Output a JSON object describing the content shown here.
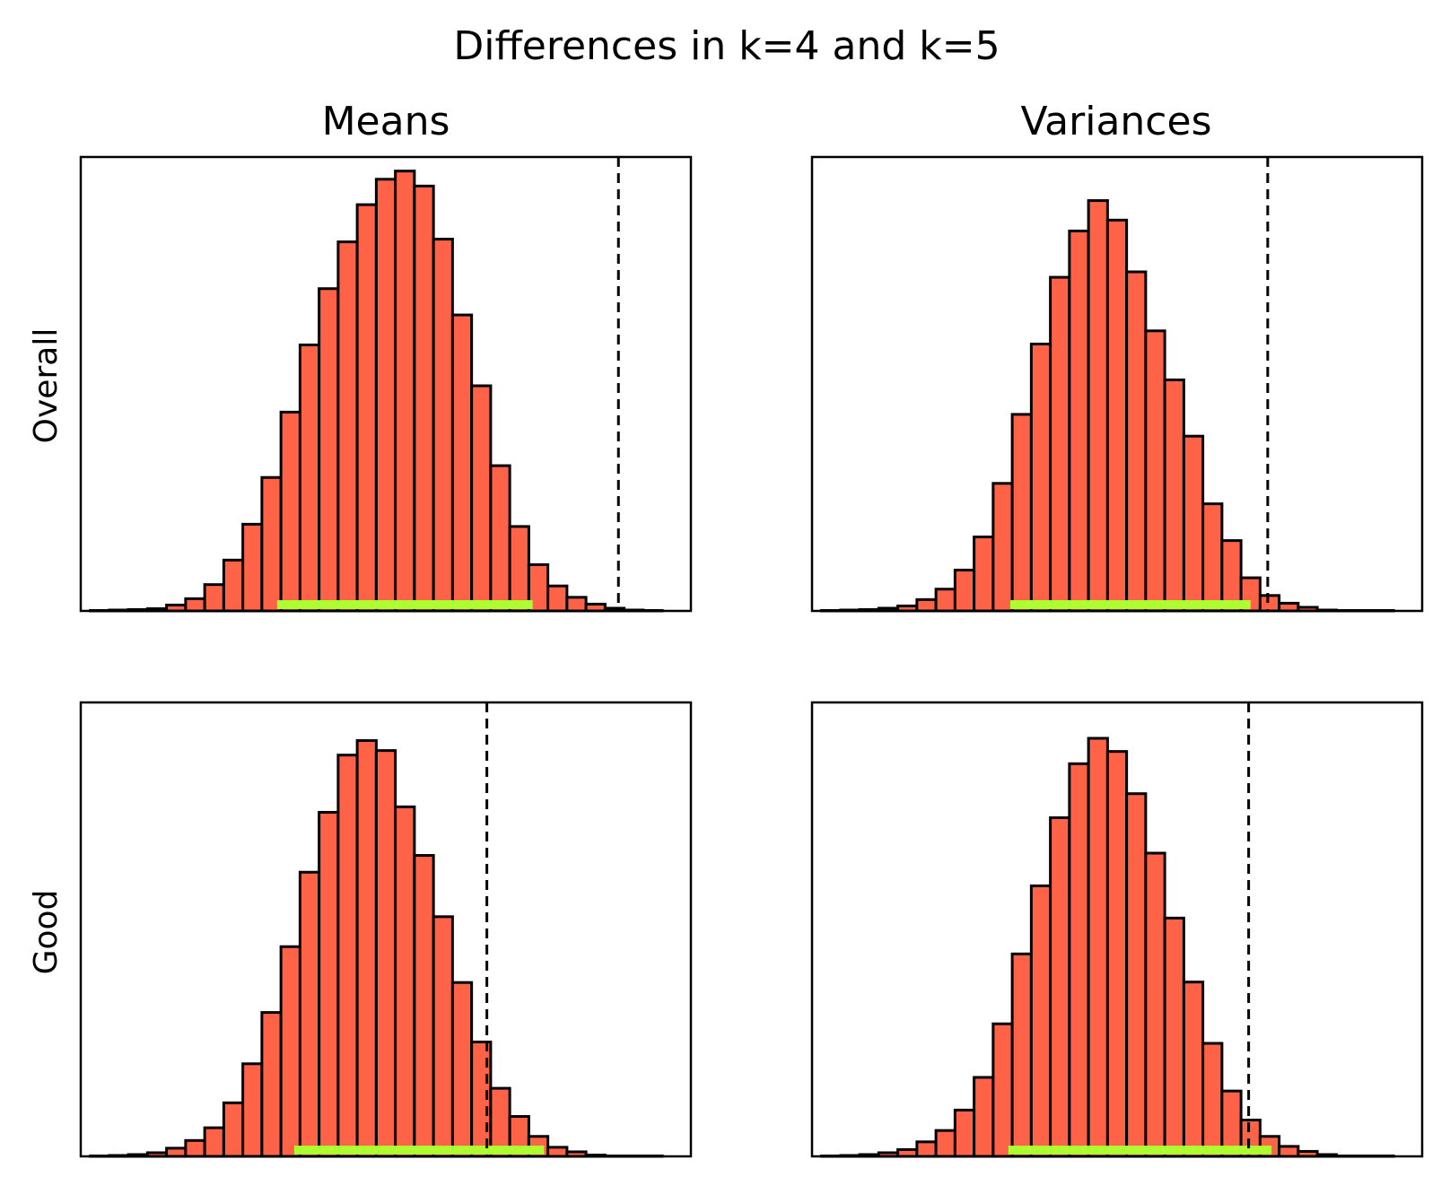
{
  "figure": {
    "title": "Differences in k=4 and k=5",
    "columns": [
      "Means",
      "Variances"
    ],
    "rows": [
      "Overall",
      "Good"
    ]
  },
  "colors": {
    "bar_fill": "#ff6347",
    "bar_edge": "#000000",
    "interval": "#adff2f",
    "reference_line": "#000000"
  },
  "chart_data": [
    {
      "type": "bar",
      "panel": "Overall / Means",
      "title": "Means",
      "row_label": "Overall",
      "x_axis_ticks": false,
      "y_axis_ticks": false,
      "x": [
        1,
        2,
        3,
        4,
        5,
        6,
        7,
        8,
        9,
        10,
        11,
        12,
        13,
        14,
        15,
        16,
        17,
        18,
        19,
        20,
        21,
        22,
        23,
        24,
        25,
        26,
        27,
        28,
        29,
        30
      ],
      "values": [
        0.1,
        0.2,
        0.3,
        0.5,
        1.3,
        2.7,
        5.8,
        11.2,
        19.1,
        29.4,
        43.8,
        58.6,
        71.0,
        81.3,
        89.5,
        95.1,
        96.9,
        93.6,
        81.9,
        65.2,
        49.6,
        32.0,
        18.6,
        10.2,
        5.5,
        3.0,
        1.5,
        0.6,
        0.2,
        0.1
      ],
      "ylim": [
        0,
        100
      ],
      "xlim": [
        0,
        32
      ],
      "reference_line_x": 28.2,
      "interval": [
        10.3,
        23.7
      ]
    },
    {
      "type": "bar",
      "panel": "Overall / Variances",
      "title": "Variances",
      "row_label": "Overall",
      "x_axis_ticks": false,
      "y_axis_ticks": false,
      "x": [
        1,
        2,
        3,
        4,
        5,
        6,
        7,
        8,
        9,
        10,
        11,
        12,
        13,
        14,
        15,
        16,
        17,
        18,
        19,
        20,
        21,
        22,
        23,
        24,
        25,
        26,
        27,
        28,
        29,
        30
      ],
      "values": [
        0.1,
        0.2,
        0.3,
        0.6,
        1.1,
        2.5,
        4.8,
        9.0,
        16.3,
        28.1,
        43.3,
        58.8,
        73.5,
        83.7,
        90.4,
        86.1,
        74.7,
        61.7,
        50.9,
        38.5,
        23.6,
        15.5,
        7.3,
        3.4,
        1.7,
        0.8,
        0.2,
        0.1,
        0.1,
        0.1
      ],
      "ylim": [
        0,
        100
      ],
      "xlim": [
        0,
        32
      ],
      "reference_line_x": 23.9,
      "interval": [
        10.4,
        23.0
      ]
    },
    {
      "type": "bar",
      "panel": "Good / Means",
      "title": "",
      "row_label": "Good",
      "x_axis_ticks": false,
      "y_axis_ticks": false,
      "x": [
        1,
        2,
        3,
        4,
        5,
        6,
        7,
        8,
        9,
        10,
        11,
        12,
        13,
        14,
        15,
        16,
        17,
        18,
        19,
        20,
        21,
        22,
        23,
        24,
        25,
        26,
        27,
        28,
        29,
        30
      ],
      "values": [
        0.1,
        0.2,
        0.4,
        0.8,
        1.8,
        3.5,
        6.3,
        11.8,
        20.4,
        31.7,
        46.2,
        62.6,
        75.8,
        88.4,
        91.6,
        89.4,
        77.0,
        66.3,
        52.8,
        38.3,
        25.2,
        15.0,
        8.8,
        4.4,
        2.0,
        1.0,
        0.3,
        0.1,
        0.1,
        0.1
      ],
      "ylim": [
        0,
        100
      ],
      "xlim": [
        0,
        32
      ],
      "reference_line_x": 21.3,
      "interval": [
        11.2,
        24.3
      ]
    },
    {
      "type": "bar",
      "panel": "Good / Variances",
      "title": "",
      "row_label": "Good",
      "x_axis_ticks": false,
      "y_axis_ticks": false,
      "x": [
        1,
        2,
        3,
        4,
        5,
        6,
        7,
        8,
        9,
        10,
        11,
        12,
        13,
        14,
        15,
        16,
        17,
        18,
        19,
        20,
        21,
        22,
        23,
        24,
        25,
        26,
        27,
        28,
        29,
        30
      ],
      "values": [
        0.1,
        0.2,
        0.4,
        0.8,
        1.5,
        3.2,
        5.7,
        10.2,
        17.4,
        29.2,
        44.6,
        59.6,
        74.6,
        86.5,
        92.1,
        89.2,
        79.9,
        66.8,
        52.5,
        38.4,
        24.9,
        14.4,
        8.0,
        4.4,
        2.2,
        1.1,
        0.4,
        0.1,
        0.1,
        0.1
      ],
      "ylim": [
        0,
        100
      ],
      "xlim": [
        0,
        32
      ],
      "reference_line_x": 22.9,
      "interval": [
        10.3,
        24.1
      ]
    }
  ]
}
